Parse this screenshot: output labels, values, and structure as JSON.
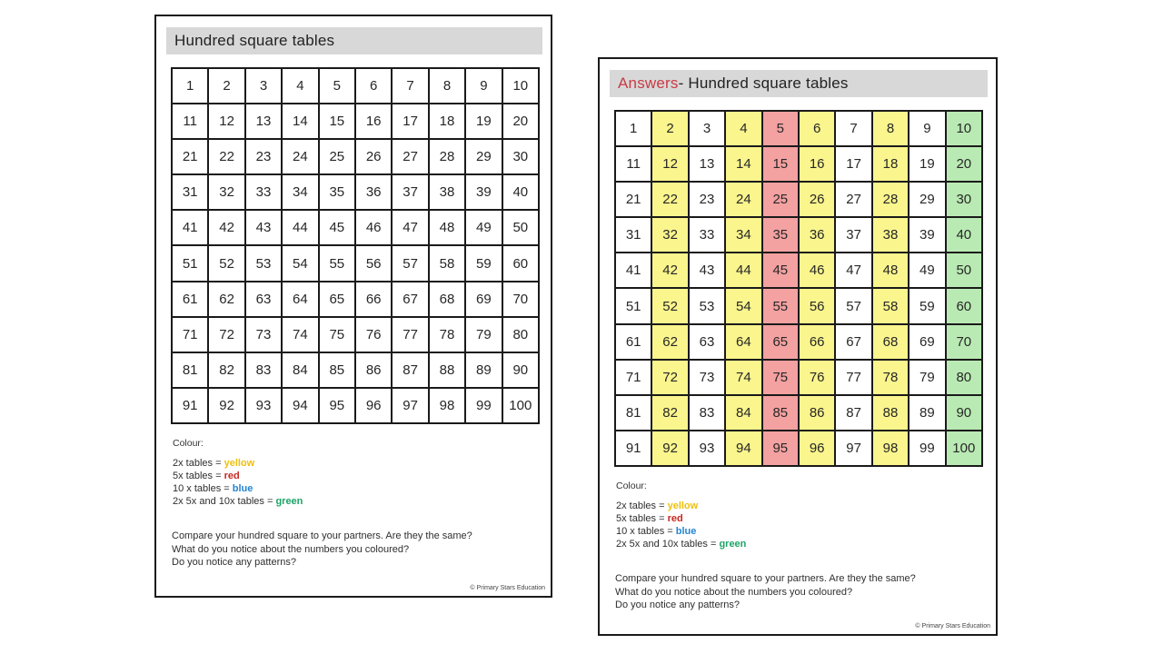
{
  "colors": {
    "page_border": "#1a1a1a",
    "header_bar": "#d8d8d8",
    "answers_red": "#c83b45",
    "cell_colors": {
      "w": "#ffffff",
      "y": "#faf58d",
      "r": "#f4a1a1",
      "g": "#b9eab3"
    }
  },
  "shared": {
    "colour_label": "Colour:",
    "legend": [
      {
        "prefix": "2x tables = ",
        "word": "yellow",
        "color": "#eec00e"
      },
      {
        "prefix": "5x tables = ",
        "word": "red",
        "color": "#c6281f"
      },
      {
        "prefix": "10 x tables = ",
        "word": "blue",
        "color": "#2485d2"
      },
      {
        "prefix": "2x 5x and 10x tables = ",
        "word": "green",
        "color": "#1fa368"
      }
    ],
    "questions": [
      "Compare your hundred square to your partners. Are they the same?",
      "What do you notice about the numbers you coloured?",
      "Do you notice any patterns?"
    ],
    "copyright": "© Primary Stars Education"
  },
  "pages": [
    {
      "id": "worksheet",
      "title_prefix": "",
      "title_rest": "Hundred square tables",
      "rows": [
        [
          1,
          2,
          3,
          4,
          5,
          6,
          7,
          8,
          9,
          10
        ],
        [
          11,
          12,
          13,
          14,
          15,
          16,
          17,
          18,
          19,
          20
        ],
        [
          21,
          22,
          23,
          24,
          25,
          26,
          27,
          28,
          29,
          30
        ],
        [
          31,
          32,
          33,
          34,
          35,
          36,
          37,
          38,
          39,
          40
        ],
        [
          41,
          42,
          43,
          44,
          45,
          46,
          47,
          48,
          49,
          50
        ],
        [
          51,
          52,
          53,
          54,
          55,
          56,
          57,
          58,
          59,
          60
        ],
        [
          61,
          62,
          63,
          64,
          65,
          66,
          67,
          68,
          69,
          70
        ],
        [
          71,
          72,
          73,
          74,
          75,
          76,
          77,
          78,
          79,
          80
        ],
        [
          81,
          82,
          83,
          84,
          85,
          86,
          87,
          88,
          89,
          90
        ],
        [
          91,
          92,
          93,
          94,
          95,
          96,
          97,
          98,
          99,
          100
        ]
      ],
      "row_colors": [
        "wwwwwwwwww",
        "wwwwwwwwww",
        "wwwwwwwwww",
        "wwwwwwwwww",
        "wwwwwwwwww",
        "wwwwwwwwww",
        "wwwwwwwwww",
        "wwwwwwwwww",
        "wwwwwwwwww",
        "wwwwwwwwww"
      ]
    },
    {
      "id": "answers",
      "title_prefix": "Answers",
      "title_rest": " - Hundred square tables",
      "rows": [
        [
          1,
          2,
          3,
          4,
          5,
          6,
          7,
          8,
          9,
          10
        ],
        [
          11,
          12,
          13,
          14,
          15,
          16,
          17,
          18,
          19,
          20
        ],
        [
          21,
          22,
          23,
          24,
          25,
          26,
          27,
          28,
          29,
          30
        ],
        [
          31,
          32,
          33,
          34,
          35,
          36,
          37,
          38,
          39,
          40
        ],
        [
          41,
          42,
          43,
          44,
          45,
          46,
          47,
          48,
          49,
          50
        ],
        [
          51,
          52,
          53,
          54,
          55,
          56,
          57,
          58,
          59,
          60
        ],
        [
          61,
          62,
          63,
          64,
          65,
          66,
          67,
          68,
          69,
          70
        ],
        [
          71,
          72,
          73,
          74,
          75,
          76,
          77,
          78,
          79,
          80
        ],
        [
          81,
          82,
          83,
          84,
          85,
          86,
          87,
          88,
          89,
          90
        ],
        [
          91,
          92,
          93,
          94,
          95,
          96,
          97,
          98,
          99,
          100
        ]
      ],
      "row_colors": [
        "wywyrywywg",
        "wywyrywywg",
        "wywyrywywg",
        "wywyrywywg",
        "wywyrywywg",
        "wywyrywywg",
        "wywyrywywg",
        "wywyrywywg",
        "wywyrywywg",
        "wywyrywywg"
      ]
    }
  ]
}
